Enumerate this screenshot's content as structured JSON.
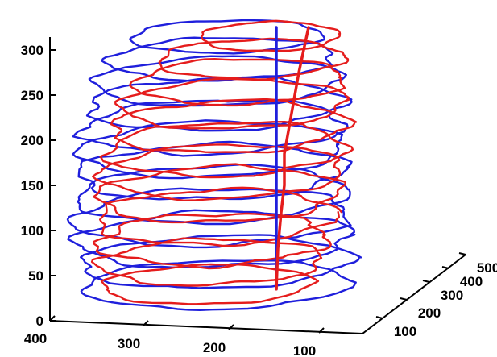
{
  "chart_data": {
    "type": "line",
    "subtype": "3d-stacked-contours",
    "title": "",
    "xlabel": "",
    "ylabel": "",
    "zlabel": "",
    "grid": false,
    "legend": "none",
    "z_axis": {
      "ticks": [
        0,
        50,
        100,
        150,
        200,
        250,
        300
      ],
      "labels": [
        "0",
        "50",
        "100",
        "150",
        "200",
        "250",
        "300"
      ]
    },
    "x_axis": {
      "ticks": [
        400,
        300,
        200,
        100
      ],
      "labels": [
        "400",
        "300",
        "200",
        "100"
      ]
    },
    "y_axis": {
      "ticks": [
        100,
        200,
        300,
        400,
        500
      ],
      "labels": [
        "100",
        "200",
        "300",
        "400",
        "500"
      ]
    },
    "series": [
      {
        "color": "#1f1fdc",
        "slices": [
          {
            "z": 40,
            "cx": 270,
            "cy": 0,
            "rx": 165,
            "ry": 30,
            "wobble": 4
          },
          {
            "z": 65,
            "cx": 268,
            "cy": 0,
            "rx": 168,
            "ry": 32,
            "wobble": 5
          },
          {
            "z": 90,
            "cx": 266,
            "cy": 0,
            "rx": 170,
            "ry": 34,
            "wobble": 6
          },
          {
            "z": 115,
            "cx": 264,
            "cy": 0,
            "rx": 170,
            "ry": 35,
            "wobble": 6
          },
          {
            "z": 140,
            "cx": 262,
            "cy": 0,
            "rx": 168,
            "ry": 35,
            "wobble": 5
          },
          {
            "z": 165,
            "cx": 262,
            "cy": 0,
            "rx": 166,
            "ry": 34,
            "wobble": 6
          },
          {
            "z": 190,
            "cx": 263,
            "cy": 0,
            "rx": 164,
            "ry": 34,
            "wobble": 5
          },
          {
            "z": 215,
            "cx": 265,
            "cy": 0,
            "rx": 162,
            "ry": 33,
            "wobble": 6
          },
          {
            "z": 240,
            "cx": 267,
            "cy": 0,
            "rx": 158,
            "ry": 32,
            "wobble": 6
          },
          {
            "z": 265,
            "cx": 270,
            "cy": 0,
            "rx": 152,
            "ry": 30,
            "wobble": 5
          },
          {
            "z": 290,
            "cx": 275,
            "cy": 0,
            "rx": 140,
            "ry": 26,
            "wobble": 5
          },
          {
            "z": 315,
            "cx": 282,
            "cy": 0,
            "rx": 118,
            "ry": 20,
            "wobble": 4
          }
        ],
        "centerline": [
          [
            0,
            35
          ],
          [
            0,
            325
          ]
        ]
      },
      {
        "color": "#e51c1c",
        "slices": [
          {
            "z": 40,
            "cx": 258,
            "cy": 0,
            "rx": 130,
            "ry": 24,
            "wobble": 4
          },
          {
            "z": 65,
            "cx": 262,
            "cy": 0,
            "rx": 138,
            "ry": 28,
            "wobble": 6
          },
          {
            "z": 90,
            "cx": 265,
            "cy": 0,
            "rx": 142,
            "ry": 32,
            "wobble": 7
          },
          {
            "z": 115,
            "cx": 268,
            "cy": 0,
            "rx": 148,
            "ry": 34,
            "wobble": 6
          },
          {
            "z": 140,
            "cx": 272,
            "cy": 0,
            "rx": 150,
            "ry": 34,
            "wobble": 6
          },
          {
            "z": 165,
            "cx": 276,
            "cy": 0,
            "rx": 150,
            "ry": 33,
            "wobble": 5
          },
          {
            "z": 190,
            "cx": 280,
            "cy": 0,
            "rx": 148,
            "ry": 33,
            "wobble": 6
          },
          {
            "z": 215,
            "cx": 284,
            "cy": 0,
            "rx": 146,
            "ry": 32,
            "wobble": 6
          },
          {
            "z": 240,
            "cx": 290,
            "cy": 0,
            "rx": 140,
            "ry": 30,
            "wobble": 5
          },
          {
            "z": 265,
            "cx": 298,
            "cy": 0,
            "rx": 130,
            "ry": 28,
            "wobble": 5
          },
          {
            "z": 290,
            "cx": 312,
            "cy": 0,
            "rx": 115,
            "ry": 24,
            "wobble": 5
          },
          {
            "z": 315,
            "cx": 335,
            "cy": 0,
            "rx": 85,
            "ry": 18,
            "wobble": 4
          }
        ],
        "centerline": [
          [
            0,
            35
          ],
          [
            2,
            80
          ],
          [
            6,
            120
          ],
          [
            10,
            150
          ],
          [
            10,
            185
          ],
          [
            16,
            215
          ],
          [
            22,
            245
          ],
          [
            28,
            275
          ],
          [
            34,
            300
          ],
          [
            40,
            325
          ]
        ]
      }
    ],
    "colors": {
      "axis": "#000000",
      "blue": "#1f1fdc",
      "red": "#e51c1c"
    }
  }
}
